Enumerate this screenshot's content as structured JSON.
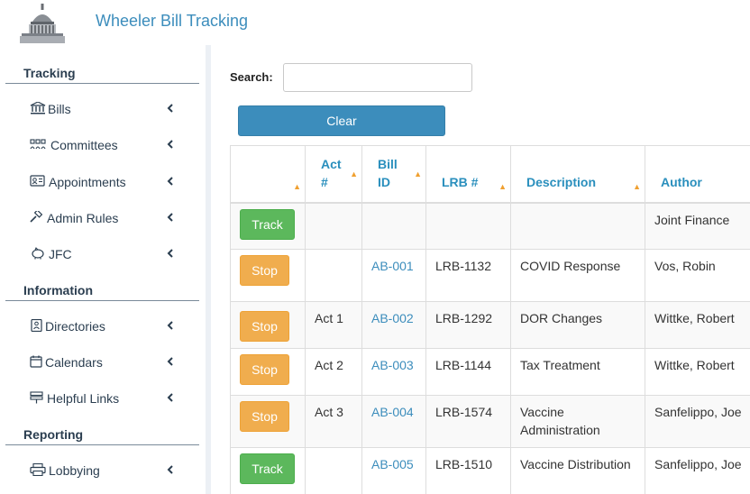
{
  "header": {
    "title": "Wheeler Bill Tracking"
  },
  "sidebar": {
    "sections": [
      {
        "title": "Tracking",
        "items": [
          {
            "label": "Bills",
            "icon": "bank-icon"
          },
          {
            "label": "Committees",
            "icon": "committee-icon"
          },
          {
            "label": "Appointments",
            "icon": "id-card-icon"
          },
          {
            "label": "Admin Rules",
            "icon": "gavel-icon"
          },
          {
            "label": "JFC",
            "icon": "piggy-bank-icon"
          }
        ]
      },
      {
        "title": "Information",
        "items": [
          {
            "label": "Directories",
            "icon": "address-book-icon"
          },
          {
            "label": "Calendars",
            "icon": "calendar-icon"
          },
          {
            "label": "Helpful Links",
            "icon": "links-icon"
          }
        ]
      },
      {
        "title": "Reporting",
        "items": [
          {
            "label": "Lobbying",
            "icon": "print-icon"
          }
        ]
      }
    ]
  },
  "search": {
    "label": "Search:",
    "value": "",
    "placeholder": ""
  },
  "clear_label": "Clear",
  "table": {
    "columns": [
      "",
      "Act #",
      "Bill ID",
      "LRB #",
      "Description",
      "Author"
    ],
    "rows": [
      {
        "action": "Track",
        "act": "",
        "bill": "",
        "lrb": "",
        "description": "",
        "author": "Joint Finance"
      },
      {
        "action": "Stop",
        "act": "",
        "bill": "AB-001",
        "lrb": "LRB-1132",
        "description": "COVID Response",
        "author": "Vos, Robin"
      },
      {
        "action": "Stop",
        "act": "Act 1",
        "bill": "AB-002",
        "lrb": "LRB-1292",
        "description": "DOR Changes",
        "author": "Wittke, Robert"
      },
      {
        "action": "Stop",
        "act": "Act 2",
        "bill": "AB-003",
        "lrb": "LRB-1144",
        "description": "Tax Treatment",
        "author": "Wittke, Robert"
      },
      {
        "action": "Stop",
        "act": "Act 3",
        "bill": "AB-004",
        "lrb": "LRB-1574",
        "description": "Vaccine Administration",
        "author": "Sanfelippo, Joe"
      },
      {
        "action": "Track",
        "act": "",
        "bill": "AB-005",
        "lrb": "LRB-1510",
        "description": "Vaccine Distribution",
        "author": "Sanfelippo, Joe"
      }
    ]
  },
  "colors": {
    "primary": "#3c8dbc",
    "track": "#5cb85c",
    "stop": "#f0ad4e",
    "sort_arrow": "#f0a030"
  }
}
